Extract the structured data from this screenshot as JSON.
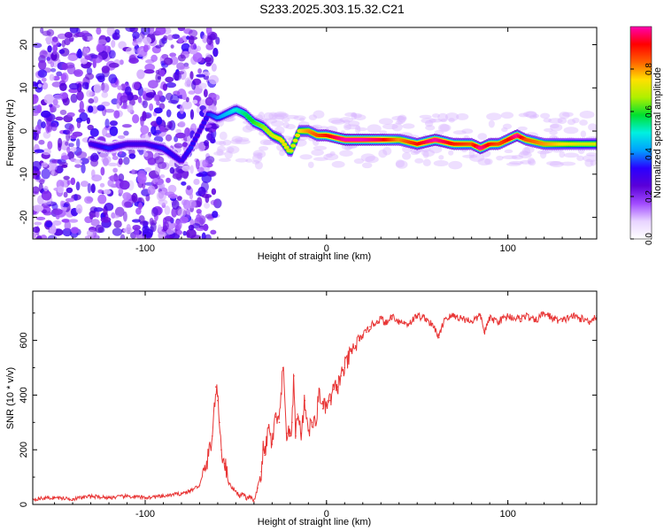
{
  "title": "S233.2025.303.15.32.C21",
  "chart_data": [
    {
      "type": "heatmap",
      "xlabel": "Height of straight line (km)",
      "ylabel": "Frequency (Hz)",
      "xlim": [
        -162,
        149
      ],
      "ylim": [
        -25,
        24
      ],
      "xticks": [
        -100,
        0,
        100
      ],
      "yticks": [
        20,
        10,
        0,
        -10,
        -20
      ],
      "colorbar": {
        "label": "Normalized spectral amplitude",
        "range": [
          0,
          1
        ],
        "ticks": [
          "0.0",
          "0.2",
          "0.4",
          "0.6",
          "0.8"
        ],
        "tick_values": [
          0,
          0.2,
          0.4,
          0.6,
          0.8
        ]
      },
      "ridge": {
        "x": [
          -130,
          -120,
          -110,
          -100,
          -90,
          -80,
          -75,
          -70,
          -65,
          -60,
          -55,
          -50,
          -45,
          -40,
          -35,
          -30,
          -25,
          -20,
          -15,
          -10,
          -5,
          0,
          10,
          20,
          30,
          40,
          50,
          60,
          70,
          80,
          85,
          90,
          95,
          100,
          105,
          110,
          120,
          130,
          140,
          149
        ],
        "freq": [
          -3,
          -4,
          -3,
          -3,
          -4,
          -7,
          -4,
          0,
          4,
          3,
          4,
          5,
          4,
          2,
          1,
          -1,
          -2,
          -5,
          0,
          0,
          -1,
          -1,
          -2,
          -2,
          -2,
          -2,
          -3,
          -2,
          -3,
          -3,
          -4,
          -3,
          -3,
          -2,
          -1,
          -2,
          -3,
          -3,
          -3,
          -3
        ],
        "amp": [
          0.3,
          0.35,
          0.3,
          0.3,
          0.35,
          0.3,
          0.35,
          0.3,
          0.35,
          0.4,
          0.45,
          0.5,
          0.55,
          0.6,
          0.65,
          0.7,
          0.75,
          0.7,
          0.75,
          0.8,
          0.85,
          0.9,
          1.0,
          1.0,
          0.95,
          0.8,
          0.9,
          1.0,
          0.9,
          0.85,
          1.0,
          0.9,
          0.85,
          0.9,
          1.0,
          0.85,
          0.8,
          0.75,
          0.7,
          0.7
        ]
      },
      "noise_region": {
        "x_range": [
          -162,
          -60
        ],
        "level": 0.15
      }
    },
    {
      "type": "line",
      "xlabel": "Height of straight line (km)",
      "ylabel": "SNR (10 * v/v)",
      "xlim": [
        -162,
        149
      ],
      "ylim": [
        0,
        780
      ],
      "xticks": [
        -100,
        0,
        100
      ],
      "yticks": [
        0,
        200,
        400,
        600
      ],
      "color": "#e83535",
      "series": [
        {
          "name": "SNR",
          "x": [
            -162,
            -150,
            -140,
            -130,
            -120,
            -110,
            -100,
            -90,
            -80,
            -75,
            -70,
            -66,
            -63,
            -61,
            -60,
            -59,
            -58,
            -56,
            -54,
            -52,
            -50,
            -48,
            -46,
            -44,
            -42,
            -40,
            -38,
            -36,
            -35,
            -34,
            -32,
            -30,
            -28,
            -26,
            -24,
            -22,
            -20,
            -19,
            -18,
            -17,
            -16,
            -14,
            -12,
            -10,
            -8,
            -6,
            -4,
            -2,
            0,
            2,
            4,
            6,
            8,
            10,
            12,
            14,
            16,
            18,
            20,
            22,
            24,
            26,
            28,
            30,
            33,
            36,
            40,
            45,
            50,
            55,
            60,
            62,
            65,
            70,
            75,
            80,
            85,
            87,
            90,
            95,
            100,
            105,
            107,
            110,
            115,
            120,
            125,
            130,
            135,
            140,
            145,
            149
          ],
          "y": [
            20,
            25,
            20,
            30,
            25,
            30,
            25,
            30,
            40,
            50,
            70,
            150,
            250,
            430,
            380,
            300,
            200,
            150,
            80,
            60,
            50,
            30,
            40,
            20,
            30,
            10,
            60,
            120,
            200,
            180,
            280,
            220,
            320,
            300,
            500,
            260,
            250,
            300,
            470,
            250,
            330,
            260,
            380,
            270,
            300,
            290,
            420,
            350,
            360,
            380,
            420,
            430,
            470,
            500,
            530,
            560,
            580,
            600,
            620,
            630,
            650,
            660,
            670,
            680,
            660,
            690,
            670,
            660,
            690,
            680,
            640,
            610,
            680,
            690,
            680,
            670,
            690,
            630,
            680,
            670,
            690,
            680,
            680,
            690,
            670,
            700,
            680,
            670,
            690,
            680,
            670,
            690
          ]
        }
      ]
    }
  ],
  "colors": {
    "line": "#e83535",
    "colormap": [
      "#ffffff",
      "#e8d4ff",
      "#a14bff",
      "#5a00d8",
      "#2a00ff",
      "#00a0ff",
      "#00f0e0",
      "#00e030",
      "#b0f000",
      "#ffe000",
      "#ff6000",
      "#ff0000",
      "#ff00b0"
    ]
  }
}
